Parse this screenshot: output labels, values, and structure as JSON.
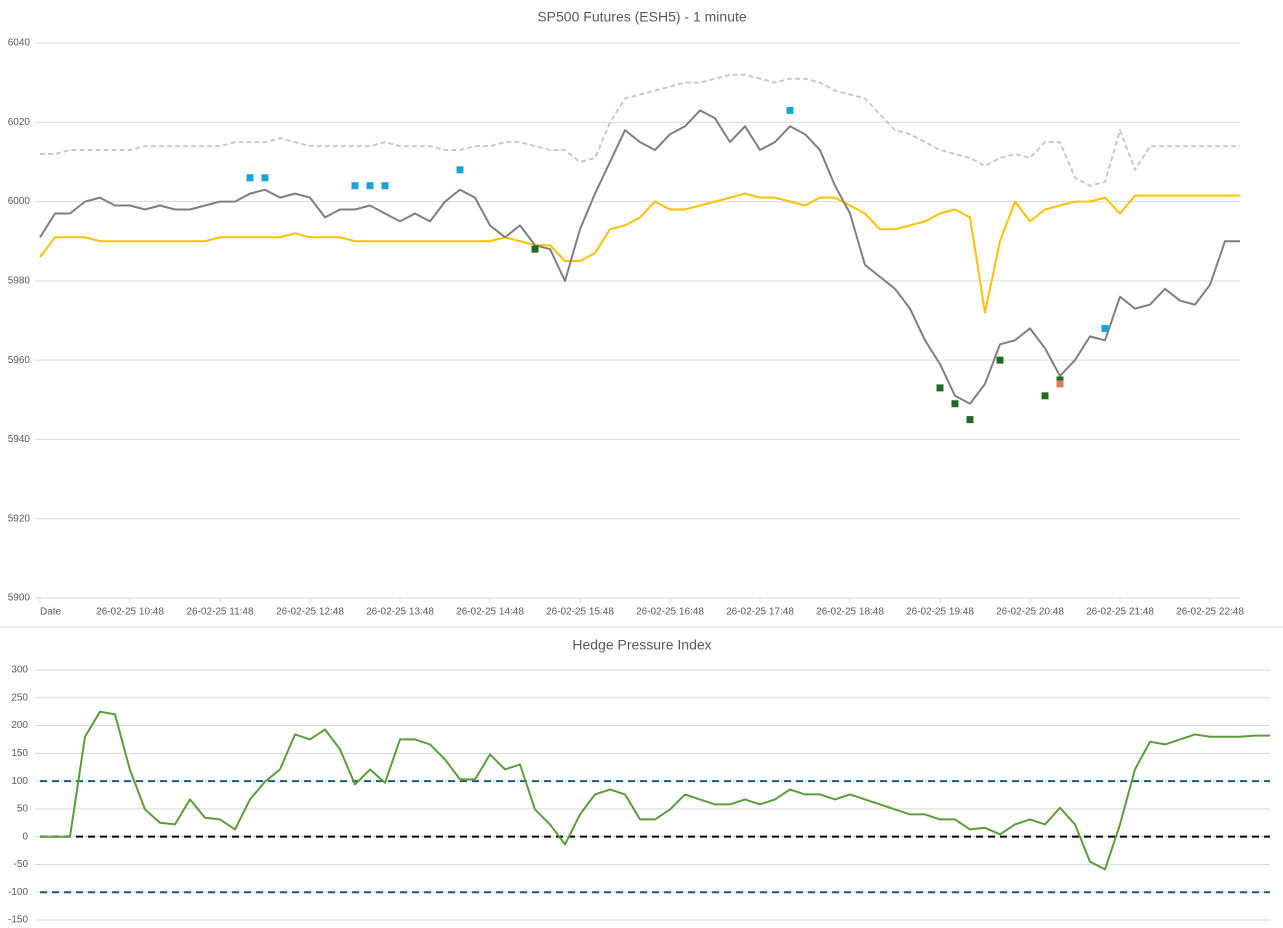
{
  "chart_data": [
    {
      "type": "line",
      "title": "SP500 Futures (ESH5) - 1 minute",
      "categories": [
        "Date",
        null,
        null,
        null,
        null,
        null,
        "26-02-25 10:48",
        null,
        null,
        null,
        null,
        null,
        "26-02-25 11:48",
        null,
        null,
        null,
        null,
        null,
        "26-02-25 12:48",
        null,
        null,
        null,
        null,
        null,
        "26-02-25 13:48",
        null,
        null,
        null,
        null,
        null,
        "26-02-25 14:48",
        null,
        null,
        null,
        null,
        null,
        "26-02-25 15:48",
        null,
        null,
        null,
        null,
        null,
        "26-02-25 16:48",
        null,
        null,
        null,
        null,
        null,
        "26-02-25 17:48",
        null,
        null,
        null,
        null,
        null,
        "26-02-25 18:48",
        null,
        null,
        null,
        null,
        null,
        "26-02-25 19:48",
        null,
        null,
        null,
        null,
        null,
        "26-02-25 20:48",
        null,
        null,
        null,
        null,
        null,
        "26-02-25 21:48",
        null,
        null,
        null,
        null,
        null,
        "26-02-25 22:48",
        null,
        null
      ],
      "series": [
        {
          "color": "#c9c9c9",
          "dash": true,
          "values": [
            6012,
            6012,
            6013,
            6013,
            6013,
            6013,
            6013,
            6014,
            6014,
            6014,
            6014,
            6014,
            6014,
            6015,
            6015,
            6015,
            6016,
            6015,
            6014,
            6014,
            6014,
            6014,
            6014,
            6015,
            6014,
            6014,
            6014,
            6013,
            6013,
            6014,
            6014,
            6015,
            6015,
            6014,
            6013,
            6013,
            6010,
            6011,
            6020,
            6026,
            6027,
            6028,
            6029,
            6030,
            6030,
            6031,
            6032,
            6032,
            6031,
            6030,
            6031,
            6031,
            6030,
            6028,
            6027,
            6026,
            6022,
            6018,
            6017,
            6015,
            6013,
            6012,
            6011,
            6009,
            6011,
            6012,
            6011,
            6015,
            6015,
            6006,
            6004,
            6005,
            6018,
            6008,
            6014,
            6014,
            6014,
            6014,
            6014,
            6014,
            6014
          ]
        },
        {
          "color": "#ffc000",
          "values": [
            5986,
            5991,
            5991,
            5991,
            5990,
            5990,
            5990,
            5990,
            5990,
            5990,
            5990,
            5990,
            5991,
            5991,
            5991,
            5991,
            5991,
            5992,
            5991,
            5991,
            5991,
            5990,
            5990,
            5990,
            5990,
            5990,
            5990,
            5990,
            5990,
            5990,
            5990,
            5991,
            5990,
            5989,
            5989,
            5985,
            5985,
            5987,
            5993,
            5994,
            5996,
            6000,
            5998,
            5998,
            5999,
            6000,
            6001,
            6002,
            6001,
            6001,
            6000,
            5999,
            6001,
            6001,
            5999,
            5997,
            5993,
            5993,
            5994,
            5995,
            5997,
            5998,
            5996,
            5972,
            5990,
            6000,
            5995,
            5998,
            5999,
            6000,
            6000,
            6001,
            5997,
            6001.5,
            6001.5,
            6001.5,
            6001.5,
            6001.5,
            6001.5,
            6001.5,
            6001.5
          ]
        },
        {
          "color": "#7f7f7f",
          "values": [
            5991,
            5997,
            5997,
            6000,
            6001,
            5999,
            5999,
            5998,
            5999,
            5998,
            5998,
            5999,
            6000,
            6000,
            6002,
            6003,
            6001,
            6002,
            6001,
            5996,
            5998,
            5998,
            5999,
            5997,
            5995,
            5997,
            5995,
            6000,
            6003,
            6001,
            5994,
            5991,
            5994,
            5989,
            5988,
            5980,
            5993,
            6002,
            6010,
            6018,
            6015,
            6013,
            6017,
            6019,
            6023,
            6021,
            6015,
            6019,
            6013,
            6015,
            6019,
            6017,
            6013,
            6004,
            5997,
            5984,
            5981,
            5978,
            5973,
            5965,
            5959,
            5951,
            5949,
            5954,
            5964,
            5965,
            5968,
            5963,
            5956,
            5960,
            5966,
            5965,
            5976,
            5973,
            5974,
            5978,
            5975,
            5974,
            5979,
            5990,
            5990
          ]
        },
        {
          "type": "scatter",
          "color": "#1aa3d9",
          "values": [
            null,
            null,
            null,
            null,
            null,
            null,
            null,
            null,
            null,
            null,
            null,
            null,
            null,
            null,
            6006,
            6006,
            null,
            null,
            null,
            null,
            null,
            6004,
            6004,
            6004,
            null,
            null,
            null,
            null,
            6008,
            null,
            null,
            null,
            null,
            null,
            null,
            null,
            null,
            null,
            null,
            null,
            null,
            null,
            null,
            null,
            null,
            null,
            null,
            null,
            null,
            null,
            6023,
            null,
            null,
            null,
            null,
            null,
            null,
            null,
            null,
            null,
            null,
            null,
            null,
            null,
            null,
            null,
            null,
            null,
            null,
            null,
            null,
            5968,
            null,
            null,
            null,
            null,
            null,
            null,
            null,
            null,
            null
          ]
        },
        {
          "type": "scatter",
          "color": "#1e6b24",
          "values": [
            null,
            null,
            null,
            null,
            null,
            null,
            null,
            null,
            null,
            null,
            null,
            null,
            null,
            null,
            null,
            null,
            null,
            null,
            null,
            null,
            null,
            null,
            null,
            null,
            null,
            null,
            null,
            null,
            null,
            null,
            null,
            null,
            null,
            5988,
            null,
            null,
            null,
            null,
            null,
            null,
            null,
            null,
            null,
            null,
            null,
            null,
            null,
            null,
            null,
            null,
            null,
            null,
            null,
            null,
            null,
            null,
            null,
            null,
            null,
            null,
            5953,
            5949,
            5945,
            null,
            5960,
            null,
            null,
            5951,
            5955,
            null,
            null,
            null,
            null,
            null,
            null,
            null,
            null,
            null,
            null,
            null,
            null
          ]
        },
        {
          "type": "scatter",
          "color": "#e07b5a",
          "values": [
            null,
            null,
            null,
            null,
            null,
            null,
            null,
            null,
            null,
            null,
            null,
            null,
            null,
            null,
            null,
            null,
            null,
            null,
            null,
            null,
            null,
            null,
            null,
            null,
            null,
            null,
            null,
            null,
            null,
            null,
            null,
            null,
            null,
            null,
            null,
            null,
            null,
            null,
            null,
            null,
            null,
            null,
            null,
            null,
            null,
            null,
            null,
            null,
            null,
            null,
            null,
            null,
            null,
            null,
            null,
            null,
            null,
            null,
            null,
            null,
            null,
            null,
            null,
            null,
            null,
            null,
            null,
            null,
            5954,
            null,
            null,
            null,
            null,
            null,
            null,
            null,
            null,
            null,
            null,
            null,
            null
          ]
        }
      ],
      "ylim": [
        5900,
        6040
      ],
      "yticks": [
        5900,
        5920,
        5940,
        5960,
        5980,
        6000,
        6020,
        6040
      ],
      "grid": true
    },
    {
      "type": "line",
      "title": "Hedge Pressure Index",
      "series": [
        {
          "color": "#5a9e3a",
          "values": [
            0,
            0,
            0,
            180,
            225,
            220,
            120,
            49,
            25,
            22,
            67,
            34,
            31,
            13,
            67,
            99,
            121,
            184,
            175,
            193,
            157,
            94,
            121,
            97,
            175,
            175,
            166,
            139,
            103,
            103,
            148,
            121,
            130,
            49,
            22,
            -14,
            40,
            76,
            85,
            76,
            31,
            31,
            49,
            76,
            67,
            58,
            58,
            67,
            58,
            67,
            85,
            76,
            76,
            67,
            76,
            67,
            58,
            49,
            40,
            40,
            31,
            31,
            13,
            16,
            4,
            22,
            31,
            22,
            52,
            22,
            -45,
            -59,
            22,
            121,
            171,
            166,
            175,
            184,
            180,
            180,
            180,
            182,
            182
          ]
        }
      ],
      "reference_lines": [
        {
          "value": 100,
          "color": "#1f5c7a"
        },
        {
          "value": 0,
          "color": "#000000"
        },
        {
          "value": -100,
          "color": "#1f5c7a"
        }
      ],
      "ylim": [
        -150,
        300
      ],
      "yticks": [
        -150,
        -100,
        -50,
        0,
        50,
        100,
        150,
        200,
        250,
        300
      ],
      "grid": true
    }
  ]
}
